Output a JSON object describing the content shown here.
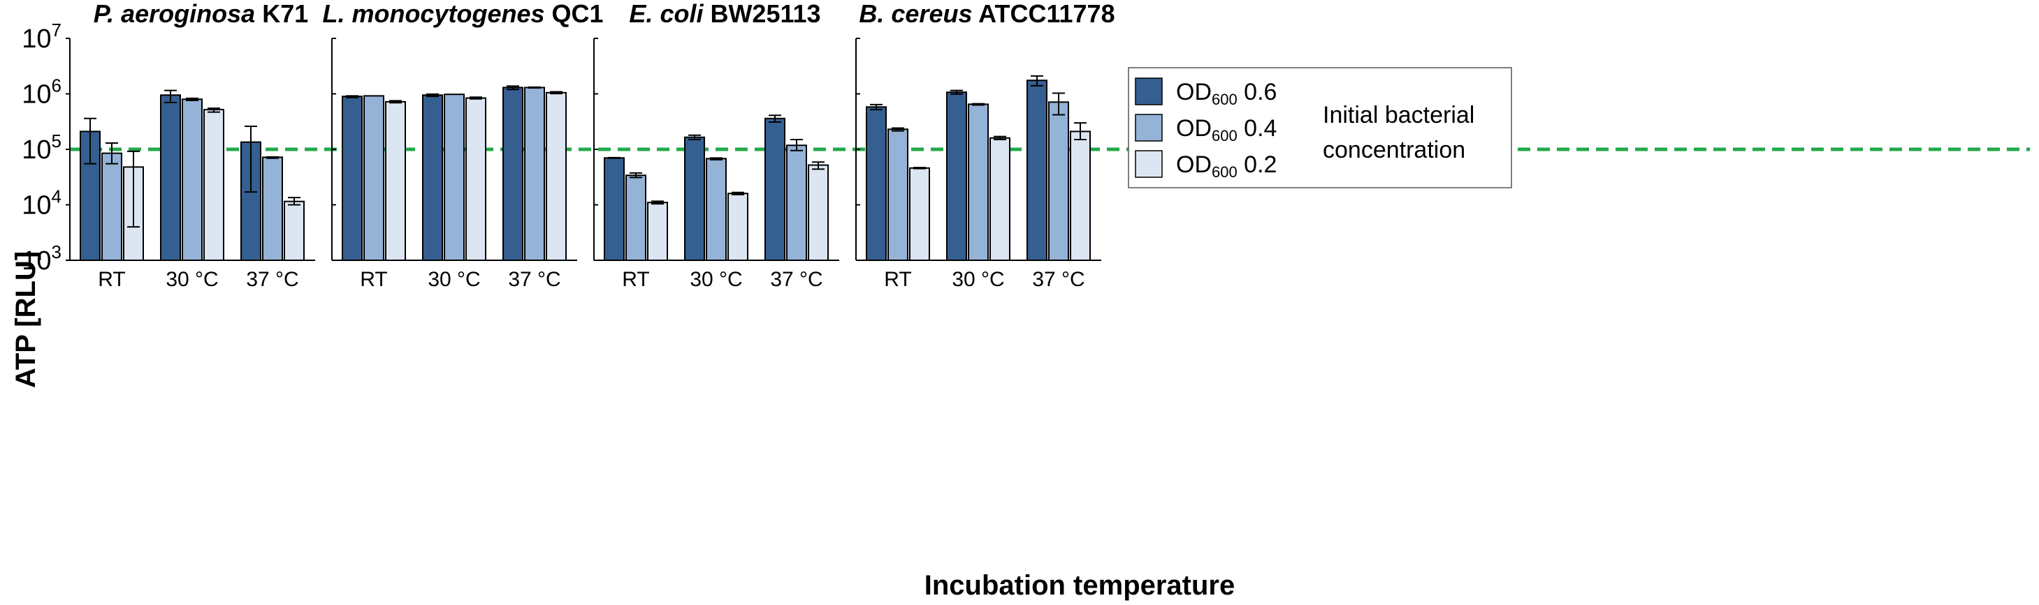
{
  "chart_data": {
    "type": "bar",
    "ylabel": "ATP [RLU]",
    "xlabel": "Incubation temperature",
    "yscale": "log10",
    "ylim": [
      1000,
      10000000
    ],
    "yticks": [
      {
        "value": 1000,
        "base": "10",
        "exp": "3"
      },
      {
        "value": 10000,
        "base": "10",
        "exp": "4"
      },
      {
        "value": 100000,
        "base": "10",
        "exp": "5"
      },
      {
        "value": 1000000,
        "base": "10",
        "exp": "6"
      },
      {
        "value": 10000000,
        "base": "10",
        "exp": "7"
      }
    ],
    "reference_line": {
      "value": 100000,
      "color": "#22a84a",
      "style": "dashed"
    },
    "categories": [
      "RT",
      "30 °C",
      "37 °C"
    ],
    "series_styles": [
      {
        "name": "OD600 0.6",
        "label_main": "OD",
        "label_sub": "600",
        "label_val": "0.6",
        "color": "#365f91"
      },
      {
        "name": "OD600 0.4",
        "label_main": "OD",
        "label_sub": "600",
        "label_val": "0.4",
        "color": "#95b3d7"
      },
      {
        "name": "OD600 0.2",
        "label_main": "OD",
        "label_sub": "600",
        "label_val": "0.2",
        "color": "#dce6f2"
      }
    ],
    "legend_title_line1": "Initial bacterial",
    "legend_title_line2": "concentration",
    "legend_position": "top-right of panel 3",
    "panels": [
      {
        "title_italic": "P. aeroginosa",
        "title_bold": "K71",
        "series": [
          {
            "name": "OD600 0.6",
            "values": [
              210000,
              950000,
              135000
            ],
            "err_low": [
              55000,
              700000,
              17000
            ],
            "err_high": [
              360000,
              1150000,
              260000
            ]
          },
          {
            "name": "OD600 0.4",
            "values": [
              85000,
              800000,
              72000
            ],
            "err_low": [
              55000,
              760000,
              69000
            ],
            "err_high": [
              130000,
              830000,
              73000
            ]
          },
          {
            "name": "OD600 0.2",
            "values": [
              48000,
              520000,
              11500
            ],
            "err_low": [
              4000,
              470000,
              10000
            ],
            "err_high": [
              92000,
              550000,
              13500
            ]
          }
        ]
      },
      {
        "title_italic": "L. monocytogenes",
        "title_bold": "QC1",
        "series": [
          {
            "name": "OD600 0.6",
            "values": [
              900000,
              950000,
              1300000
            ],
            "err_low": [
              860000,
              900000,
              1200000
            ],
            "err_high": [
              920000,
              990000,
              1380000
            ]
          },
          {
            "name": "OD600 0.4",
            "values": [
              920000,
              980000,
              1300000
            ],
            "err_low": [
              920000,
              980000,
              1280000
            ],
            "err_high": [
              920000,
              980000,
              1320000
            ]
          },
          {
            "name": "OD600 0.2",
            "values": [
              720000,
              840000,
              1050000
            ],
            "err_low": [
              690000,
              810000,
              1010000
            ],
            "err_high": [
              750000,
              870000,
              1090000
            ]
          }
        ]
      },
      {
        "title_italic": "E. coli",
        "title_bold": "BW25113",
        "series": [
          {
            "name": "OD600 0.6",
            "values": [
              70000,
              165000,
              360000
            ],
            "err_low": [
              69000,
              150000,
              310000
            ],
            "err_high": [
              71000,
              180000,
              410000
            ]
          },
          {
            "name": "OD600 0.4",
            "values": [
              34000,
              68000,
              118000
            ],
            "err_low": [
              31000,
              65000,
              95000
            ],
            "err_high": [
              37500,
              70000,
              150000
            ]
          },
          {
            "name": "OD600 0.2",
            "values": [
              11000,
              16000,
              52000
            ],
            "err_low": [
              10400,
              15300,
              44000
            ],
            "err_high": [
              11600,
              16700,
              59000
            ]
          }
        ]
      },
      {
        "title_italic": "B. cereus",
        "title_bold": "ATCC11778",
        "series": [
          {
            "name": "OD600 0.6",
            "values": [
              580000,
              1070000,
              1750000
            ],
            "err_low": [
              520000,
              990000,
              1400000
            ],
            "err_high": [
              640000,
              1150000,
              2100000
            ]
          },
          {
            "name": "OD600 0.4",
            "values": [
              230000,
              650000,
              710000
            ],
            "err_low": [
              215000,
              630000,
              420000
            ],
            "err_high": [
              242000,
              665000,
              1030000
            ]
          },
          {
            "name": "OD600 0.2",
            "values": [
              46000,
              160000,
              210000
            ],
            "err_low": [
              45000,
              150000,
              150000
            ],
            "err_high": [
              47000,
              170000,
              300000
            ]
          }
        ]
      }
    ]
  }
}
